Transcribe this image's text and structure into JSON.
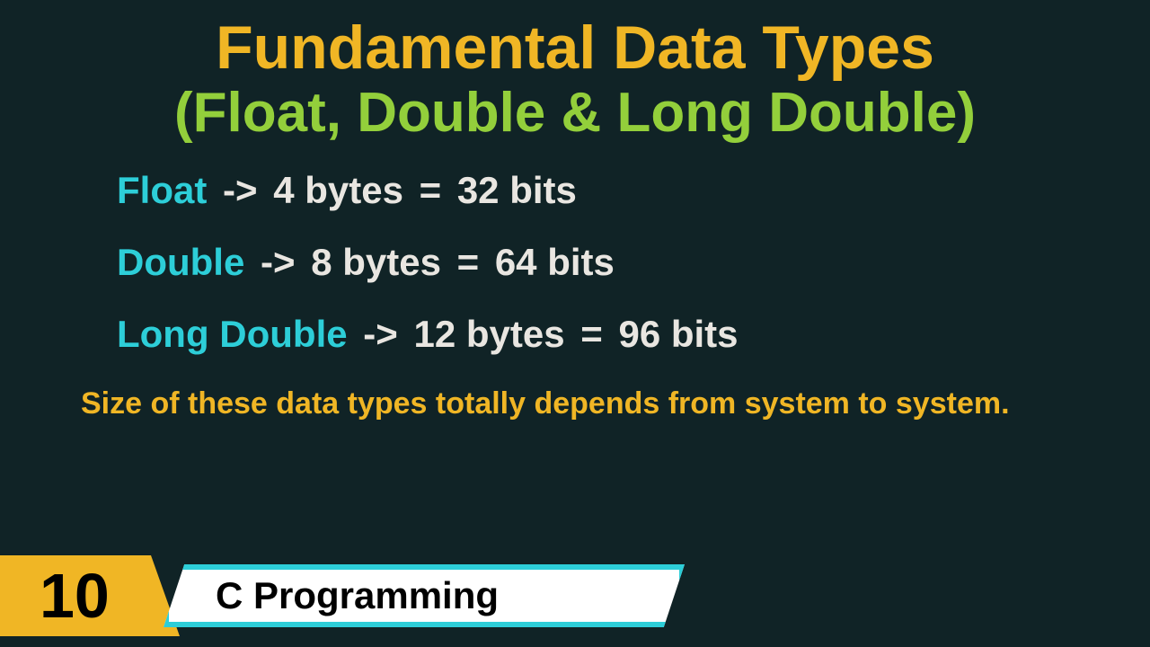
{
  "colors": {
    "background": "#102326",
    "title_line1": "#f0b625",
    "title_line2": "#93cf3b",
    "type_name": "#2dced8",
    "arrow": "#e9e6e1",
    "value_text": "#e9e6e1",
    "note_text": "#f0b625",
    "footer_num_bg": "#f0b625",
    "footer_label_border": "#2dced8",
    "footer_label_bg": "#ffffff",
    "footer_text": "#000000"
  },
  "title": {
    "line1": "Fundamental Data Types",
    "line2": "(Float, Double & Long Double)"
  },
  "rows": [
    {
      "type": "Float",
      "arrow": "->",
      "bytes": "4 bytes",
      "eq": "=",
      "bits": "32 bits"
    },
    {
      "type": "Double",
      "arrow": "->",
      "bytes": "8 bytes",
      "eq": "=",
      "bits": "64 bits"
    },
    {
      "type": "Long Double",
      "arrow": "->",
      "bytes": "12 bytes",
      "eq": "=",
      "bits": "96 bits"
    }
  ],
  "note": "Size of these data types totally depends from system to system.",
  "footer": {
    "number": "10",
    "label": "C Programming"
  }
}
